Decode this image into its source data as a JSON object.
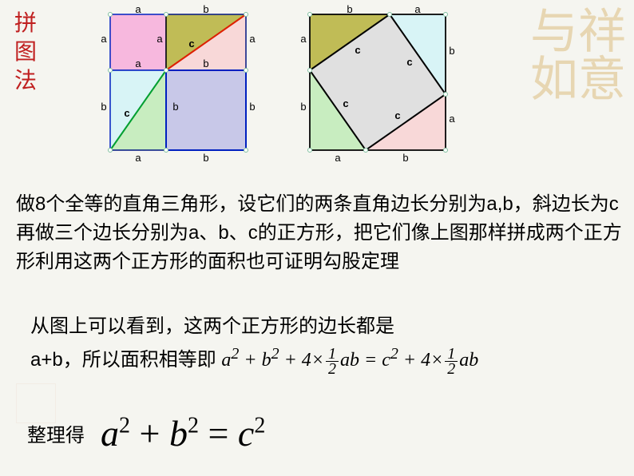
{
  "sideTitle": "拼图法",
  "ornament": "与祥如意",
  "paragraph1": "做8个全等的直角三角形，设它们的两条直角边长分别为a,b，斜边长为c再做三个边长分别为a、b、c的正方形，把它们像上图那样拼成两个正方形利用这两个正方形的面积也可证明勾股定理",
  "paragraph2a": "从图上可以看到，这两个正方形的边长都是",
  "paragraph2b": "a+b，所以面积相等即",
  "text3label": "整理得",
  "eq1": {
    "lhs_a": "a",
    "lhs_b": "b",
    "plus": "+",
    "four": "4",
    "times": "×",
    "half_num": "1",
    "half_den": "2",
    "ab": "ab",
    "eq": "=",
    "c": "c"
  },
  "eq2": {
    "a": "a",
    "b": "b",
    "c": "c",
    "plus": " + ",
    "eq": " = ",
    "sq": "2"
  },
  "fig": {
    "a": 70,
    "b": 100,
    "labels": {
      "a": "a",
      "b": "b",
      "c": "c"
    },
    "colors": {
      "pink": "#f7b8de",
      "olive": "#c0bc56",
      "lightpink": "#f8d8d8",
      "lightcyan": "#d8f4f6",
      "lavender": "#c8c8e8",
      "lightgreen": "#c8edc0",
      "grey": "#e0e0e0",
      "outlineBlue": "#0020c0",
      "outlineGreen": "#00a030",
      "outlineRed": "#e02000",
      "outlineBlack": "#000000",
      "vertex": "#80c0a0"
    }
  }
}
